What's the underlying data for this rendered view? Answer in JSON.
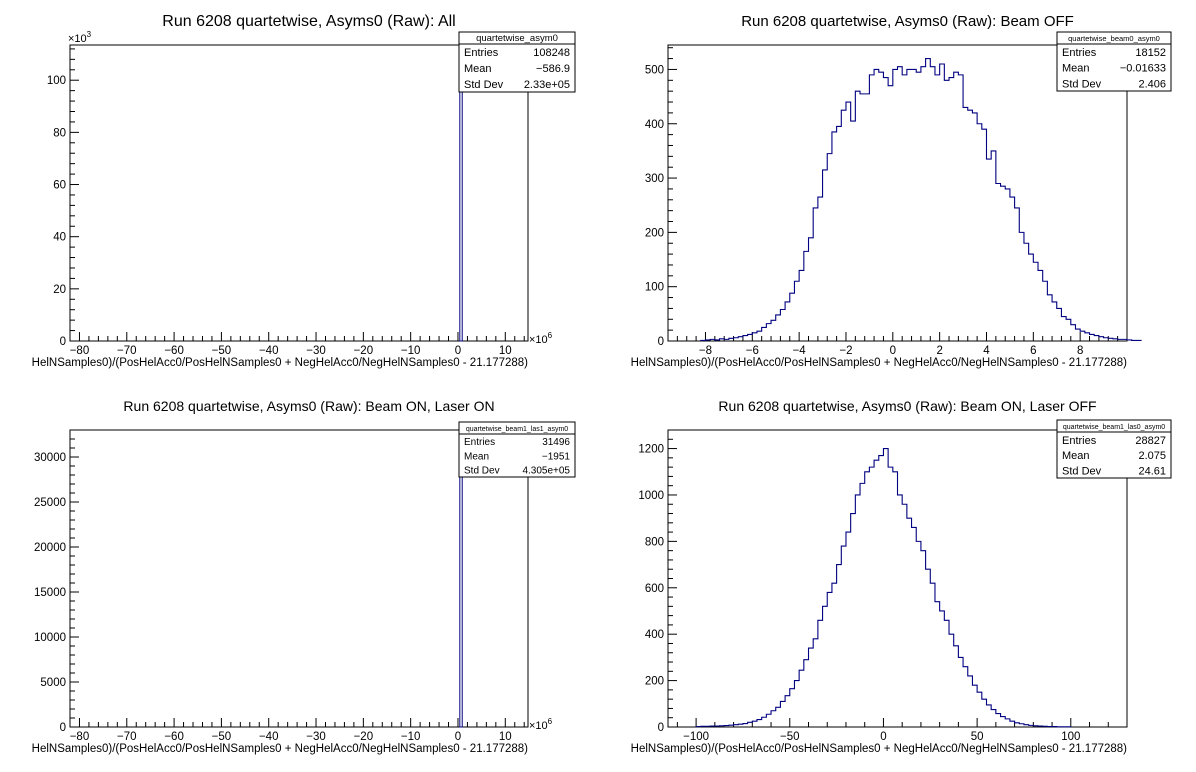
{
  "chart_data": [
    {
      "type": "bar",
      "title": "Run 6208 quartetwise, Asyms0 (Raw): All",
      "xlabel": "HelNSamples0)/(PosHelAcc0/PosHelNSamples0 + NegHelAcc0/NegHelNSamples0 - 21.177288)",
      "ylabel": "",
      "x_multiplier": "×10^6",
      "y_multiplier": "×10^3",
      "xlim": [
        -82,
        14.8
      ],
      "ylim": [
        0,
        113.5
      ],
      "xticks": [
        -80,
        -70,
        -60,
        -50,
        -40,
        -30,
        -20,
        -10,
        0,
        10
      ],
      "yticks": [
        0,
        20,
        40,
        60,
        80,
        100
      ],
      "x": [
        0.6
      ],
      "values": [
        108.2
      ],
      "stats": {
        "name": "quartetwise_asym0",
        "entries": "108248",
        "mean": "−586.9",
        "std_dev": "2.33e+05"
      }
    },
    {
      "type": "bar",
      "title": "Run 6208 quartetwise, Asyms0 (Raw): Beam OFF",
      "xlabel": "HelNSamples0)/(PosHelAcc0/PosHelNSamples0 + NegHelAcc0/NegHelNSamples0 - 21.177288)",
      "ylabel": "",
      "xlim": [
        -9.6,
        10
      ],
      "ylim": [
        0,
        545
      ],
      "xticks": [
        -8,
        -6,
        -4,
        -2,
        0,
        2,
        4,
        6,
        8
      ],
      "yticks": [
        0,
        100,
        200,
        300,
        400,
        500
      ],
      "x_start": -8.2,
      "bin_width": 0.2,
      "values": [
        1,
        2,
        3,
        2,
        4,
        3,
        5,
        6,
        8,
        10,
        12,
        15,
        18,
        25,
        32,
        38,
        48,
        58,
        72,
        88,
        110,
        130,
        165,
        190,
        245,
        265,
        315,
        345,
        385,
        395,
        425,
        440,
        405,
        460,
        455,
        455,
        490,
        500,
        495,
        485,
        470,
        500,
        505,
        490,
        500,
        500,
        495,
        505,
        520,
        505,
        490,
        510,
        480,
        485,
        495,
        490,
        430,
        425,
        420,
        400,
        390,
        335,
        350,
        290,
        285,
        280,
        265,
        245,
        200,
        180,
        160,
        145,
        130,
        110,
        85,
        72,
        60,
        45,
        40,
        30,
        22,
        18,
        15,
        12,
        10,
        8,
        6,
        5,
        4,
        3,
        3,
        2,
        1,
        1
      ],
      "stats": {
        "name": "quartetwise_beam0_asym0",
        "entries": "18152",
        "mean": "−0.01633",
        "std_dev": "2.406"
      }
    },
    {
      "type": "bar",
      "title": "Run 6208 quartetwise, Asyms0 (Raw): Beam ON, Laser ON",
      "xlabel": "HelNSamples0)/(PosHelAcc0/PosHelNSamples0 + NegHelAcc0/NegHelNSamples0 - 21.177288)",
      "ylabel": "",
      "x_multiplier": "×10^6",
      "xlim": [
        -82,
        14.8
      ],
      "ylim": [
        0,
        33000
      ],
      "xticks": [
        -80,
        -70,
        -60,
        -50,
        -40,
        -30,
        -20,
        -10,
        0,
        10
      ],
      "yticks": [
        0,
        5000,
        10000,
        15000,
        20000,
        25000,
        30000
      ],
      "x": [
        0.6
      ],
      "values": [
        31496
      ],
      "stats": {
        "name": "quartetwise_beam1_las1_asym0",
        "entries": "31496",
        "mean": "−1951",
        "std_dev": "4.305e+05"
      }
    },
    {
      "type": "bar",
      "title": "Run 6208 quartetwise, Asyms0 (Raw): Beam ON, Laser OFF",
      "xlabel": "HelNSamples0)/(PosHelAcc0/PosHelNSamples0 + NegHelAcc0/NegHelNSamples0 - 21.177288)",
      "ylabel": "",
      "xlim": [
        -115,
        130
      ],
      "ylim": [
        0,
        1280
      ],
      "xticks": [
        -100,
        -50,
        0,
        50,
        100
      ],
      "yticks": [
        0,
        200,
        400,
        600,
        800,
        1000,
        1200
      ],
      "x_start": -100,
      "bin_width": 2.5,
      "values": [
        2,
        3,
        3,
        4,
        4,
        5,
        6,
        8,
        10,
        12,
        15,
        20,
        25,
        32,
        42,
        55,
        70,
        85,
        110,
        135,
        165,
        200,
        245,
        290,
        340,
        380,
        460,
        520,
        580,
        620,
        700,
        780,
        840,
        920,
        1000,
        1050,
        1100,
        1120,
        1150,
        1170,
        1200,
        1120,
        1100,
        1000,
        960,
        900,
        860,
        800,
        760,
        680,
        620,
        540,
        500,
        460,
        400,
        350,
        300,
        260,
        220,
        180,
        150,
        120,
        95,
        75,
        58,
        45,
        35,
        25,
        18,
        14,
        10,
        7,
        5,
        4,
        3,
        2,
        2,
        1,
        1,
        1
      ],
      "stats": {
        "name": "quartetwise_beam1_las0_asym0",
        "entries": "28827",
        "mean": "2.075",
        "std_dev": "24.61"
      }
    }
  ]
}
